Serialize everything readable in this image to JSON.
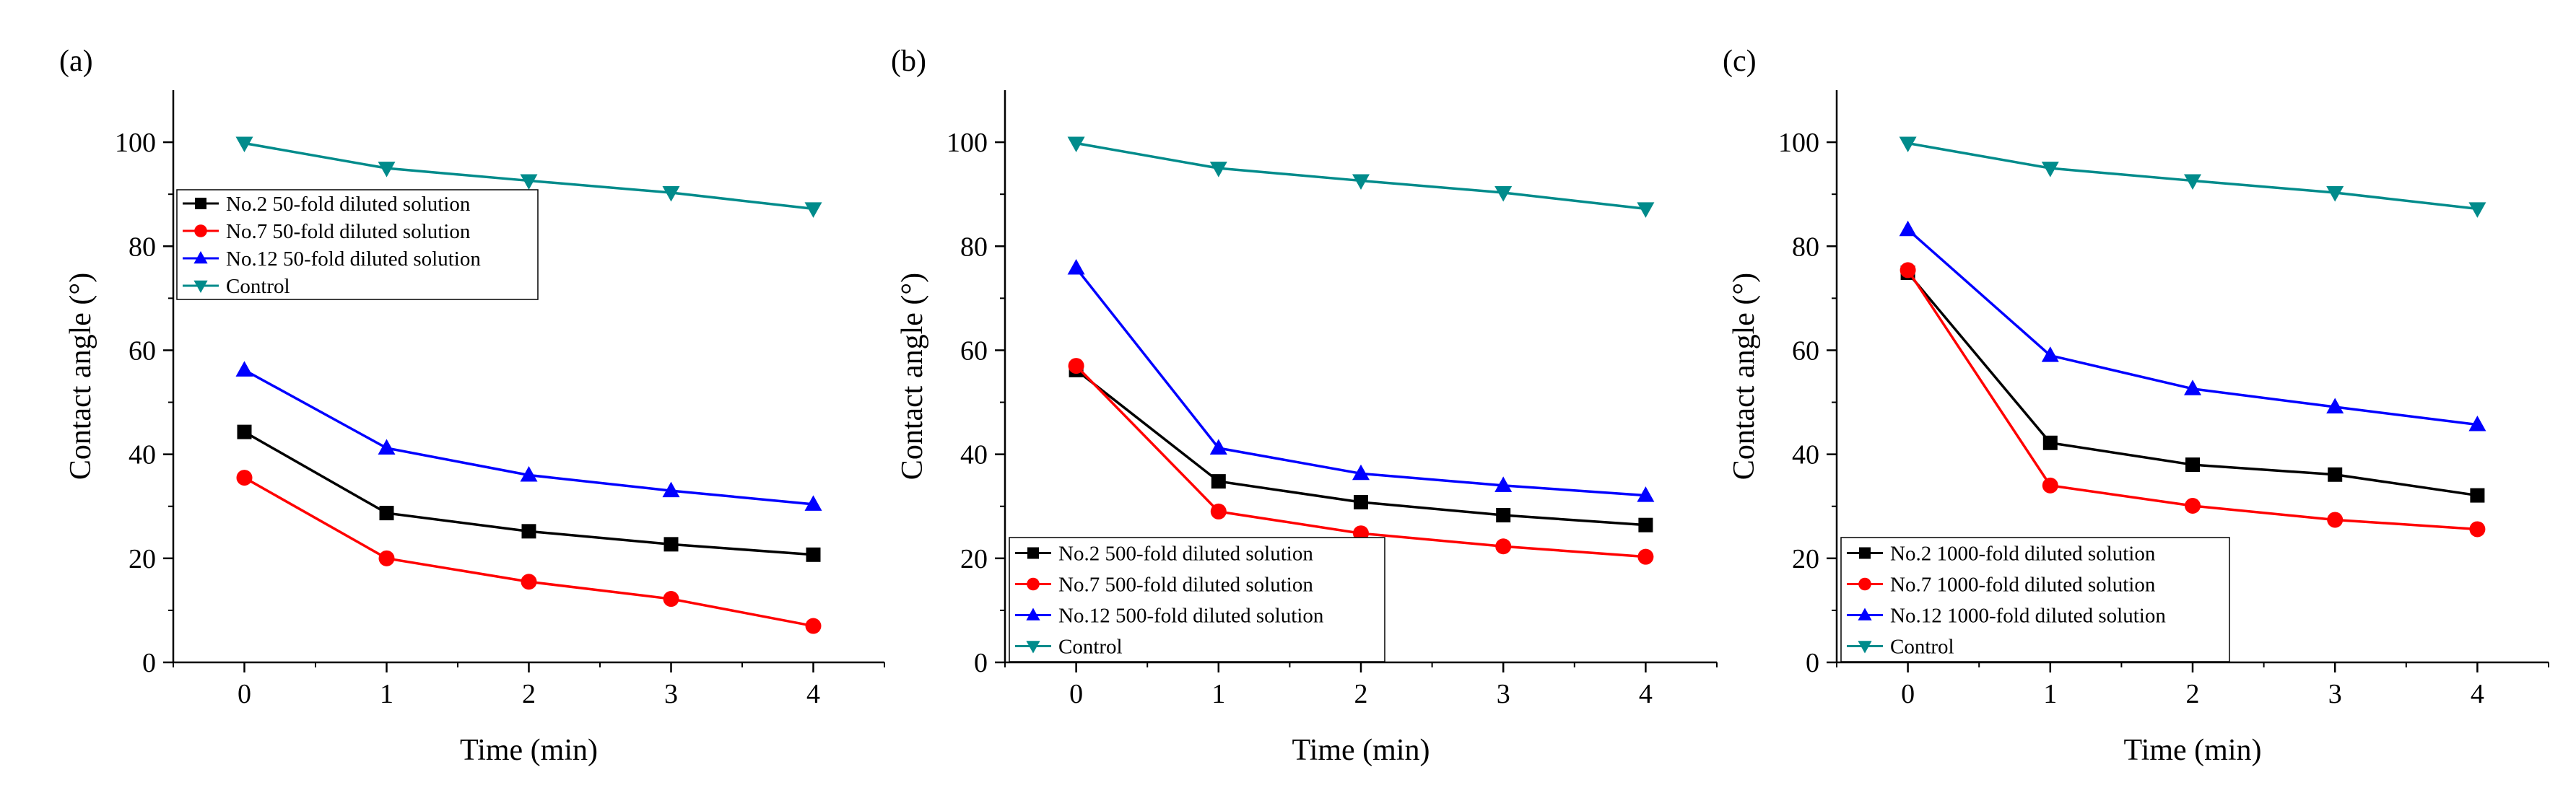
{
  "chart_data": [
    {
      "type": "line",
      "panel_label": "(a)",
      "xlabel": "Time (min)",
      "ylabel": "Contact angle (°)",
      "x": [
        0,
        1,
        2,
        3,
        4
      ],
      "xlim": [
        -0.5,
        4.5
      ],
      "ylim": [
        0,
        110
      ],
      "xticks": [
        0,
        1,
        2,
        3,
        4
      ],
      "yticks": [
        0,
        20,
        40,
        60,
        80,
        100
      ],
      "legend_position": "upper-left",
      "grid": false,
      "series": [
        {
          "name": "No.2 50-fold diluted solution",
          "color": "#000000",
          "marker": "square",
          "values": [
            44.3,
            28.7,
            25.2,
            22.7,
            20.7
          ]
        },
        {
          "name": "No.7 50-fold diluted solution",
          "color": "#ff0000",
          "marker": "circle",
          "values": [
            35.5,
            20.0,
            15.5,
            12.2,
            7.0
          ]
        },
        {
          "name": "No.12 50-fold diluted solution",
          "color": "#0000ff",
          "marker": "triangle-up",
          "values": [
            56.2,
            41.2,
            36.0,
            33.0,
            30.4
          ]
        },
        {
          "name": "Control",
          "color": "#008b8b",
          "marker": "triangle-down",
          "values": [
            99.8,
            95.0,
            92.6,
            90.3,
            87.2
          ]
        }
      ]
    },
    {
      "type": "line",
      "panel_label": "(b)",
      "xlabel": "Time (min)",
      "ylabel": "Contact angle (°)",
      "x": [
        0,
        1,
        2,
        3,
        4
      ],
      "xlim": [
        -0.5,
        4.5
      ],
      "ylim": [
        0,
        110
      ],
      "xticks": [
        0,
        1,
        2,
        3,
        4
      ],
      "yticks": [
        0,
        20,
        40,
        60,
        80,
        100
      ],
      "legend_position": "lower-left",
      "grid": false,
      "series": [
        {
          "name": "No.2 500-fold diluted solution",
          "color": "#000000",
          "marker": "square",
          "values": [
            56.2,
            34.8,
            30.8,
            28.3,
            26.4
          ]
        },
        {
          "name": "No.7 500-fold diluted solution",
          "color": "#ff0000",
          "marker": "circle",
          "values": [
            57.0,
            29.0,
            24.8,
            22.3,
            20.3
          ]
        },
        {
          "name": "No.12 500-fold diluted solution",
          "color": "#0000ff",
          "marker": "triangle-up",
          "values": [
            75.8,
            41.2,
            36.3,
            34.0,
            32.1
          ]
        },
        {
          "name": "Control",
          "color": "#008b8b",
          "marker": "triangle-down",
          "values": [
            99.8,
            95.0,
            92.6,
            90.3,
            87.2
          ]
        }
      ]
    },
    {
      "type": "line",
      "panel_label": "(c)",
      "xlabel": "Time (min)",
      "ylabel": "Contact angle (°)",
      "x": [
        0,
        1,
        2,
        3,
        4
      ],
      "xlim": [
        -0.5,
        4.5
      ],
      "ylim": [
        0,
        110
      ],
      "xticks": [
        0,
        1,
        2,
        3,
        4
      ],
      "yticks": [
        0,
        20,
        40,
        60,
        80,
        100
      ],
      "legend_position": "lower-left",
      "grid": false,
      "series": [
        {
          "name": "No.2 1000-fold diluted solution",
          "color": "#000000",
          "marker": "square",
          "values": [
            74.9,
            42.2,
            38.0,
            36.1,
            32.1
          ]
        },
        {
          "name": "No.7 1000-fold diluted solution",
          "color": "#ff0000",
          "marker": "circle",
          "values": [
            75.4,
            34.0,
            30.1,
            27.4,
            25.6
          ]
        },
        {
          "name": "No.12 1000-fold diluted solution",
          "color": "#0000ff",
          "marker": "triangle-up",
          "values": [
            83.2,
            59.0,
            52.6,
            49.1,
            45.7
          ]
        },
        {
          "name": "Control",
          "color": "#008b8b",
          "marker": "triangle-down",
          "values": [
            99.8,
            95.0,
            92.6,
            90.3,
            87.2
          ]
        }
      ]
    }
  ]
}
